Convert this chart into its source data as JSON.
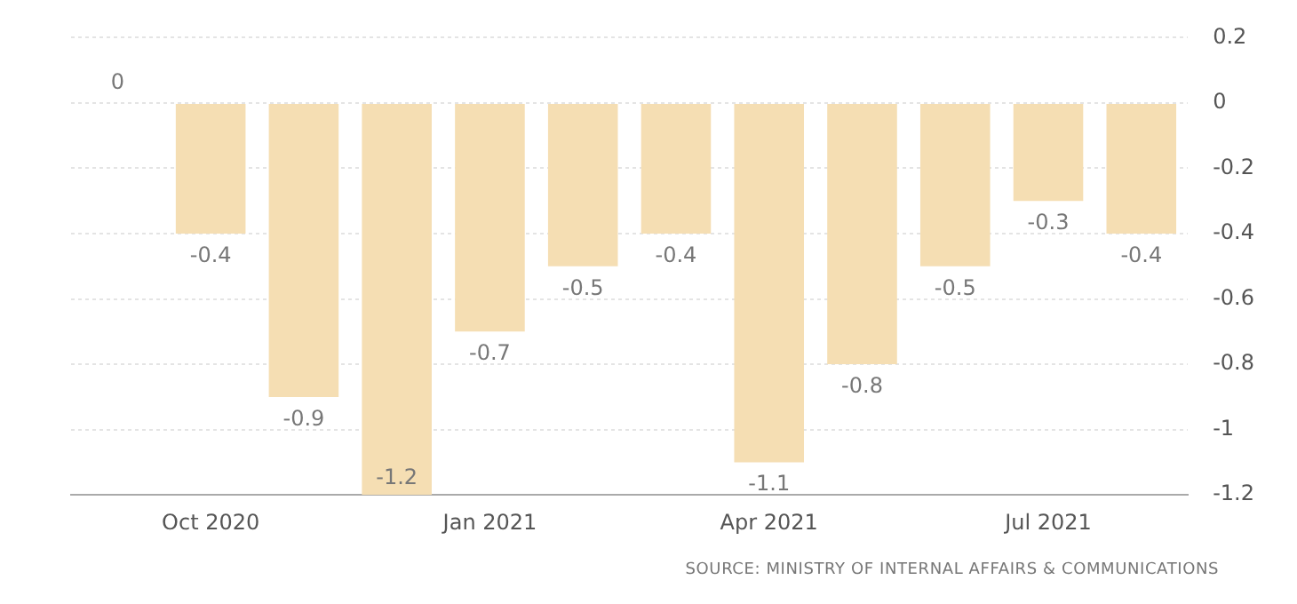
{
  "chart_data": {
    "type": "bar",
    "categories": [
      null,
      "Oct 2020",
      null,
      null,
      "Jan 2021",
      null,
      null,
      "Apr 2021",
      null,
      null,
      "Jul 2021",
      null
    ],
    "values": [
      0,
      -0.4,
      -0.9,
      -1.2,
      -0.7,
      -0.5,
      -0.4,
      -1.1,
      -0.8,
      -0.5,
      -0.3,
      -0.4
    ],
    "color": "#f5deb3",
    "ylim": [
      -1.2,
      0.2
    ],
    "yticks": [
      0.2,
      0,
      -0.2,
      -0.4,
      -0.6,
      -0.8,
      -1,
      -1.2
    ],
    "grid": "y",
    "data_labels": true,
    "annotations": [
      "SOURCE: MINISTRY OF INTERNAL AFFAIRS & COMMUNICATIONS"
    ]
  }
}
